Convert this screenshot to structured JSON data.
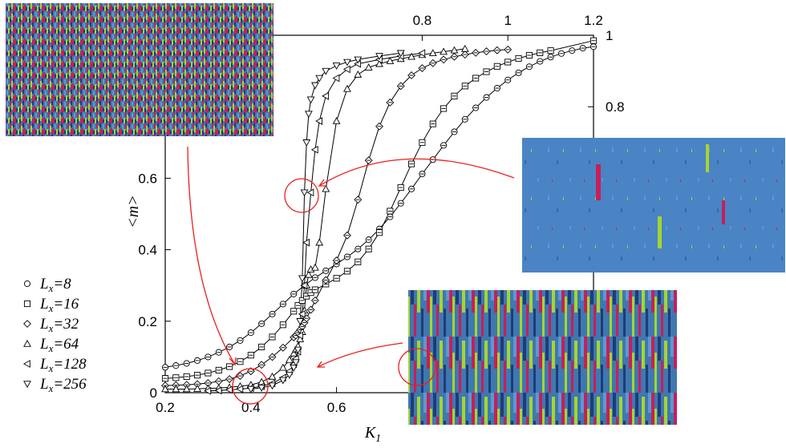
{
  "chart_data": {
    "type": "scatter",
    "title": "",
    "xlabel": "K_1",
    "ylabel": "<m>",
    "xlim": [
      0.2,
      1.2
    ],
    "ylim": [
      0,
      1
    ],
    "x_ticks_bottom": [
      "0.2",
      "0.4",
      "0.6"
    ],
    "x_ticks_top": [
      "0.8",
      "1",
      "1.2"
    ],
    "y_ticks_left": [
      "0",
      "0.2",
      "0.4",
      "0.6"
    ],
    "y_ticks_right": [
      "0.8",
      "1"
    ],
    "grid": false,
    "legend_position": "left",
    "series": [
      {
        "name": "L_x=8",
        "marker": "circle-dash",
        "lw": 8,
        "x": [
          0.2,
          0.225,
          0.25,
          0.275,
          0.3,
          0.325,
          0.35,
          0.375,
          0.4,
          0.425,
          0.45,
          0.475,
          0.5,
          0.525,
          0.55,
          0.575,
          0.6,
          0.625,
          0.65,
          0.675,
          0.7,
          0.725,
          0.75,
          0.775,
          0.8,
          0.825,
          0.85,
          0.875,
          0.9,
          0.925,
          0.95,
          0.975,
          1.0,
          1.025,
          1.05,
          1.075,
          1.1,
          1.125,
          1.15,
          1.175,
          1.2
        ],
        "y": [
          0.071,
          0.076,
          0.082,
          0.09,
          0.1,
          0.113,
          0.128,
          0.146,
          0.168,
          0.193,
          0.22,
          0.248,
          0.276,
          0.3,
          0.322,
          0.341,
          0.36,
          0.38,
          0.402,
          0.428,
          0.458,
          0.492,
          0.53,
          0.57,
          0.612,
          0.652,
          0.692,
          0.73,
          0.765,
          0.797,
          0.826,
          0.852,
          0.875,
          0.895,
          0.912,
          0.927,
          0.939,
          0.949,
          0.957,
          0.964,
          0.968
        ]
      },
      {
        "name": "L_x=16",
        "marker": "square-dash",
        "lw": 16,
        "x": [
          0.2,
          0.225,
          0.25,
          0.275,
          0.3,
          0.325,
          0.35,
          0.375,
          0.4,
          0.425,
          0.45,
          0.475,
          0.5,
          0.51,
          0.52,
          0.53,
          0.54,
          0.55,
          0.575,
          0.6,
          0.625,
          0.65,
          0.675,
          0.7,
          0.725,
          0.75,
          0.775,
          0.8,
          0.825,
          0.85,
          0.875,
          0.9,
          0.925,
          0.95,
          0.975,
          1.0,
          1.025,
          1.05,
          1.075,
          1.1,
          1.2
        ],
        "y": [
          0.04,
          0.042,
          0.045,
          0.049,
          0.055,
          0.063,
          0.073,
          0.087,
          0.105,
          0.128,
          0.156,
          0.19,
          0.228,
          0.244,
          0.258,
          0.27,
          0.28,
          0.288,
          0.304,
          0.32,
          0.34,
          0.366,
          0.402,
          0.448,
          0.508,
          0.574,
          0.64,
          0.7,
          0.752,
          0.795,
          0.83,
          0.858,
          0.88,
          0.898,
          0.913,
          0.925,
          0.935,
          0.944,
          0.951,
          0.957,
          0.985
        ]
      },
      {
        "name": "L_x=32",
        "marker": "diamond-dash",
        "lw": 32,
        "x": [
          0.2,
          0.225,
          0.25,
          0.275,
          0.3,
          0.325,
          0.35,
          0.375,
          0.4,
          0.425,
          0.45,
          0.475,
          0.5,
          0.505,
          0.51,
          0.515,
          0.52,
          0.525,
          0.53,
          0.54,
          0.55,
          0.575,
          0.6,
          0.625,
          0.65,
          0.675,
          0.7,
          0.725,
          0.75,
          0.775,
          0.8,
          0.825,
          0.85,
          0.875,
          0.9,
          0.925,
          0.95,
          0.975,
          1.0
        ],
        "y": [
          0.02,
          0.021,
          0.022,
          0.024,
          0.027,
          0.032,
          0.038,
          0.047,
          0.06,
          0.078,
          0.1,
          0.126,
          0.155,
          0.16,
          0.168,
          0.176,
          0.185,
          0.196,
          0.208,
          0.232,
          0.258,
          0.315,
          0.37,
          0.44,
          0.54,
          0.65,
          0.745,
          0.812,
          0.858,
          0.888,
          0.908,
          0.922,
          0.932,
          0.94,
          0.946,
          0.951,
          0.955,
          0.958,
          0.96
        ]
      },
      {
        "name": "L_x=64",
        "marker": "triangle-up",
        "lw": 64,
        "x": [
          0.2,
          0.225,
          0.25,
          0.275,
          0.3,
          0.325,
          0.35,
          0.375,
          0.4,
          0.425,
          0.45,
          0.475,
          0.49,
          0.5,
          0.505,
          0.51,
          0.515,
          0.52,
          0.525,
          0.53,
          0.535,
          0.54,
          0.55,
          0.56,
          0.575,
          0.6,
          0.625,
          0.65,
          0.675,
          0.7,
          0.725,
          0.75,
          0.775,
          0.8,
          0.825,
          0.85,
          0.875,
          0.9
        ],
        "y": [
          0.01,
          0.01,
          0.01,
          0.011,
          0.012,
          0.013,
          0.015,
          0.018,
          0.022,
          0.03,
          0.045,
          0.07,
          0.092,
          0.11,
          0.12,
          0.13,
          0.15,
          0.17,
          0.23,
          0.3,
          0.33,
          0.345,
          0.35,
          0.42,
          0.57,
          0.76,
          0.85,
          0.89,
          0.91,
          0.92,
          0.928,
          0.934,
          0.94,
          0.945,
          0.95,
          0.954,
          0.958,
          0.962
        ]
      },
      {
        "name": "L_x=128",
        "marker": "triangle-left",
        "lw": 128,
        "x": [
          0.3,
          0.325,
          0.35,
          0.375,
          0.4,
          0.425,
          0.45,
          0.475,
          0.49,
          0.5,
          0.505,
          0.51,
          0.515,
          0.52,
          0.525,
          0.53,
          0.54,
          0.55,
          0.56,
          0.575,
          0.6,
          0.625,
          0.65,
          0.7,
          0.75,
          0.8
        ],
        "y": [
          0.005,
          0.006,
          0.008,
          0.01,
          0.013,
          0.018,
          0.026,
          0.042,
          0.06,
          0.08,
          0.095,
          0.115,
          0.16,
          0.22,
          0.3,
          0.42,
          0.56,
          0.68,
          0.76,
          0.83,
          0.88,
          0.905,
          0.92,
          0.932,
          0.942,
          0.95
        ]
      },
      {
        "name": "L_x=256",
        "marker": "triangle-down",
        "lw": 256,
        "x": [
          0.4,
          0.425,
          0.45,
          0.475,
          0.49,
          0.5,
          0.505,
          0.51,
          0.515,
          0.52,
          0.525,
          0.53,
          0.535,
          0.54,
          0.55,
          0.56,
          0.575,
          0.6,
          0.625,
          0.65,
          0.7,
          0.75
        ],
        "y": [
          0.01,
          0.014,
          0.02,
          0.035,
          0.05,
          0.07,
          0.085,
          0.12,
          0.2,
          0.32,
          0.56,
          0.7,
          0.78,
          0.82,
          0.86,
          0.88,
          0.9,
          0.915,
          0.925,
          0.932,
          0.942,
          0.95
        ]
      }
    ],
    "annotations": [
      "inset-snapshot-top-left",
      "inset-snapshot-right",
      "inset-snapshot-bottom-right"
    ]
  }
}
